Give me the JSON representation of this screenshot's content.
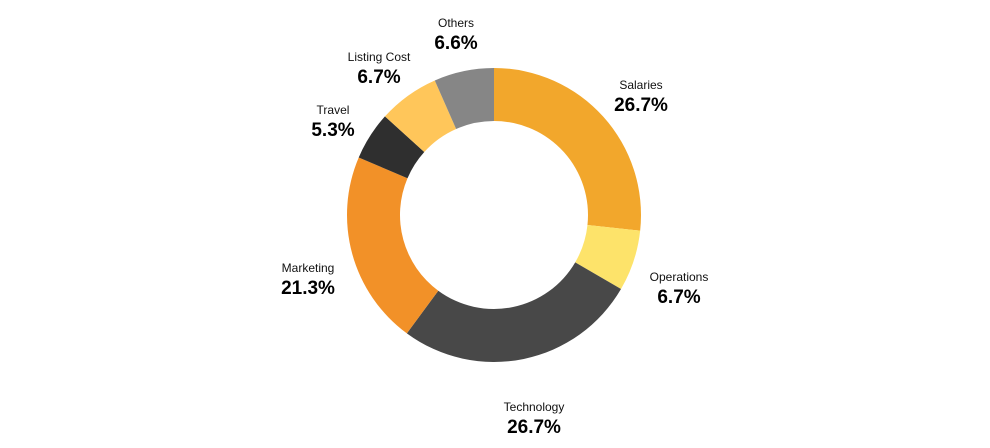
{
  "chart_data": {
    "type": "pie",
    "variant": "donut",
    "title": "",
    "slices": [
      {
        "label": "Salaries",
        "value": 26.7,
        "display": "26.7%",
        "color": "#F2A72C"
      },
      {
        "label": "Operations",
        "value": 6.7,
        "display": "6.7%",
        "color": "#FDE36A"
      },
      {
        "label": "Technology",
        "value": 26.7,
        "display": "26.7%",
        "color": "#484848"
      },
      {
        "label": "Marketing",
        "value": 21.3,
        "display": "21.3%",
        "color": "#F29128"
      },
      {
        "label": "Travel",
        "value": 5.3,
        "display": "5.3%",
        "color": "#2F2F2F"
      },
      {
        "label": "Listing Cost",
        "value": 6.7,
        "display": "6.7%",
        "color": "#FFC65A"
      },
      {
        "label": "Others",
        "value": 6.6,
        "display": "6.6%",
        "color": "#868686"
      }
    ],
    "start": "top",
    "direction": "clockwise",
    "legend": "none",
    "labels": "outside"
  }
}
